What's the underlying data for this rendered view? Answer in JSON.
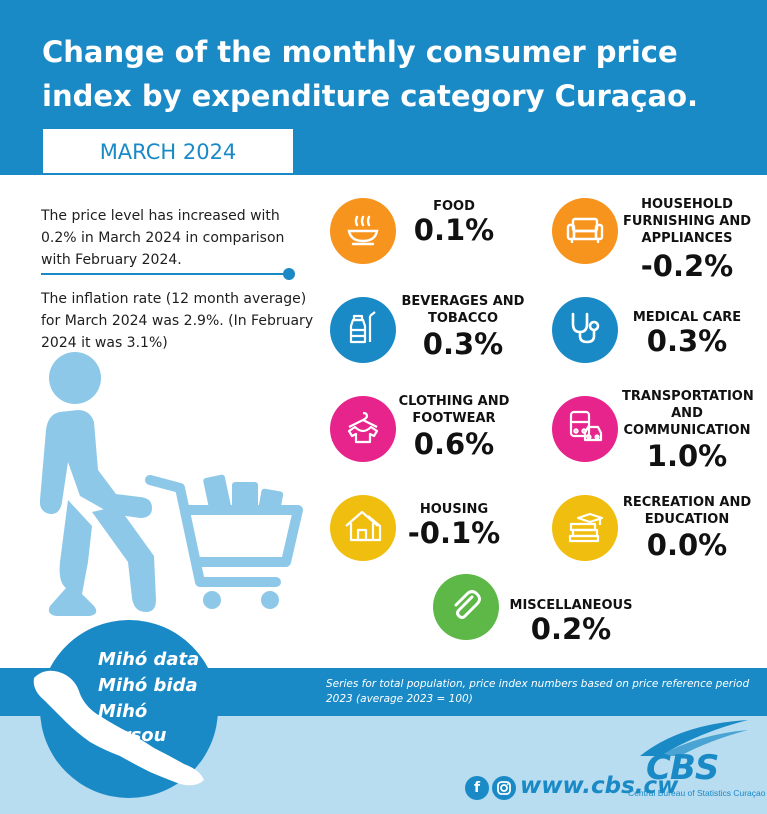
{
  "header": {
    "title": "Change of the monthly consumer price index by expenditure category Curaçao.",
    "period": "MARCH 2024"
  },
  "intro": {
    "paragraph1": "The price level has increased with 0.2% in March 2024 in comparison with February 2024.",
    "paragraph2": "The inflation rate (12 month average) for March 2024 was 2.9%. (In February 2024 it was 3.1%)"
  },
  "categories": [
    {
      "label": "FOOD",
      "value": "0.1%",
      "icon": "food-bowl-icon",
      "color": "#f7941d"
    },
    {
      "label": "HOUSEHOLD FURNISHING AND APPLIANCES",
      "value": "-0.2%",
      "icon": "sofa-icon",
      "color": "#f7941d"
    },
    {
      "label": "BEVERAGES AND TOBACCO",
      "value": "0.3%",
      "icon": "bottle-icon",
      "color": "#1a8ac6"
    },
    {
      "label": "MEDICAL CARE",
      "value": "0.3%",
      "icon": "stethoscope-icon",
      "color": "#1a8ac6"
    },
    {
      "label": "CLOTHING AND FOOTWEAR",
      "value": "0.6%",
      "icon": "shirt-hanger-icon",
      "color": "#e6248c"
    },
    {
      "label": "TRANSPORTATION AND COMMUNICATION",
      "value": "1.0%",
      "icon": "bus-car-icon",
      "color": "#e6248c"
    },
    {
      "label": "HOUSING",
      "value": "-0.1%",
      "icon": "house-icon",
      "color": "#f0be0e"
    },
    {
      "label": "RECREATION AND EDUCATION",
      "value": "0.0%",
      "icon": "books-icon",
      "color": "#f0be0e"
    },
    {
      "label": "MISCELLANEOUS",
      "value": "0.2%",
      "icon": "paperclip-icon",
      "color": "#5db847"
    }
  ],
  "footnote": "Series for total population, price index numbers based on price reference period 2023 (average 2023 = 100)",
  "slogan": [
    "Mihó data",
    "Mihó bida",
    "Mihó kòrsou"
  ],
  "footer": {
    "facebook": "f",
    "url": "www.cbs.cw",
    "logo": "CBS",
    "org": "Central Bureau of Statistics Curaçao"
  }
}
